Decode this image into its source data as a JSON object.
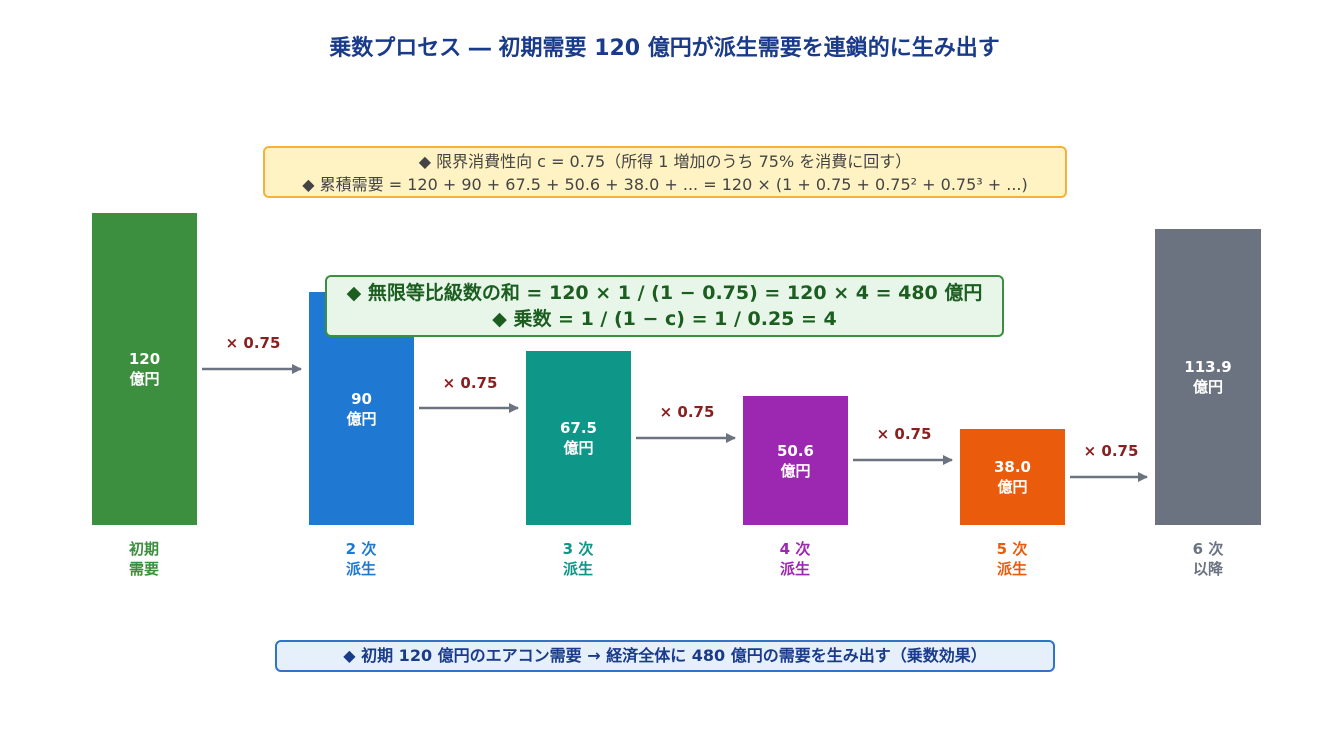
{
  "title": "乗数プロセス ― 初期需要 120 億円が派生需要を連鎖的に生み出す",
  "top_box": {
    "line1": "◆ 限界消費性向 c = 0.75（所得 1 増加のうち 75% を消費に回す）",
    "line2": "◆ 累積需要 = 120 + 90 + 67.5 + 50.6 + 38.0 + ... = 120 × (1 + 0.75 + 0.75² + 0.75³ + ...)"
  },
  "mid_box": {
    "line1": "◆ 無限等比級数の和 = 120 × 1 / (1 − 0.75) = 120 × 4 = 480 億円",
    "line2": "◆ 乗数 = 1 / (1 − c) = 1 / 0.25 = 4"
  },
  "bottom_box": {
    "text": "◆ 初期 120 億円のエアコン需要 → 経済全体に 480 億円の需要を生み出す（乗数効果）"
  },
  "multiplier_label": "× 0.75",
  "unit": "億円",
  "colors": {
    "title": "#1a3a8a",
    "arrow": "#6b7280",
    "multiplier": "#8a1f1f"
  },
  "stages": [
    {
      "value": "120",
      "label1": "初期",
      "label2": "需要",
      "color": "#3b8f3e"
    },
    {
      "value": "90",
      "label1": "2 次",
      "label2": "派生",
      "color": "#1f78d1"
    },
    {
      "value": "67.5",
      "label1": "3 次",
      "label2": "派生",
      "color": "#0e9688"
    },
    {
      "value": "50.6",
      "label1": "4 次",
      "label2": "派生",
      "color": "#9c27b0"
    },
    {
      "value": "38.0",
      "label1": "5 次",
      "label2": "派生",
      "color": "#ea5b0c"
    },
    {
      "value": "113.9",
      "label1": "6 次",
      "label2": "以降",
      "color": "#6b7280"
    }
  ]
}
